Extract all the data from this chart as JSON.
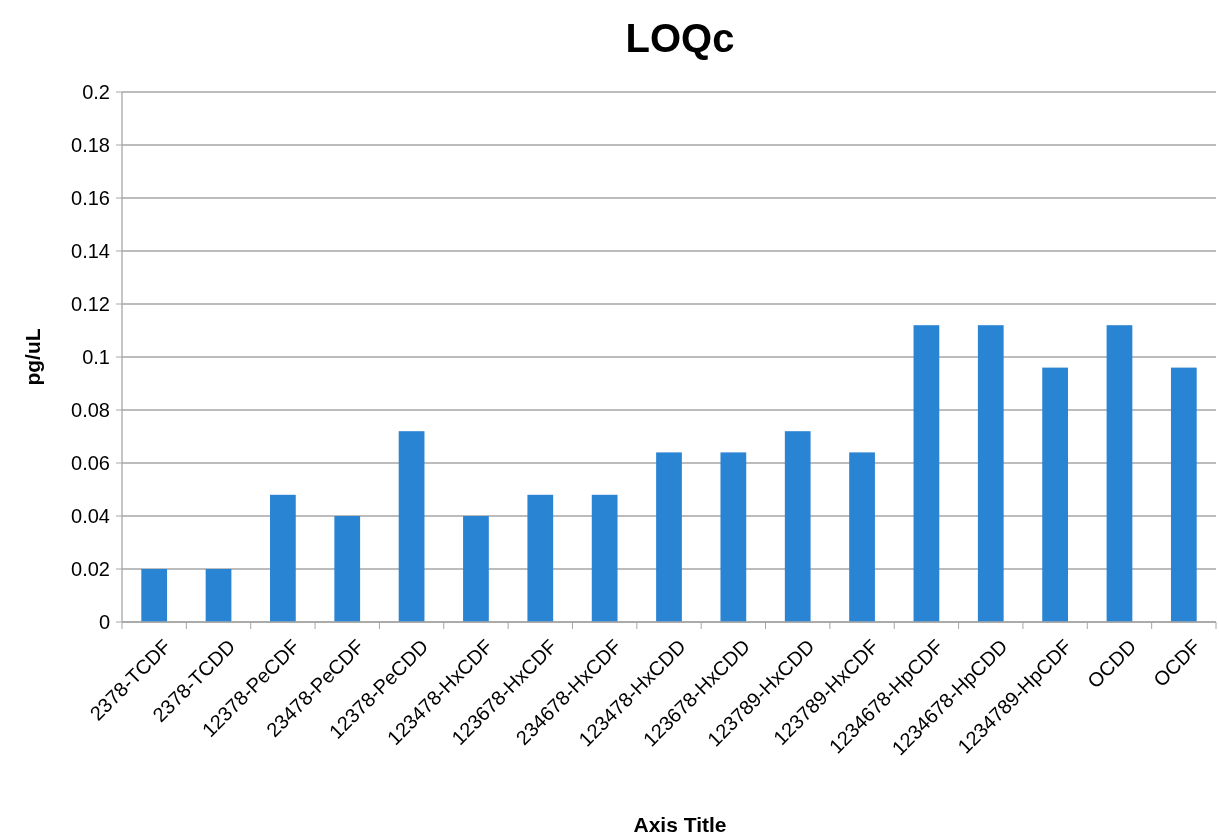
{
  "chart_data": {
    "type": "bar",
    "title": "LOQc",
    "xlabel": "Axis Title",
    "ylabel": "pg/uL",
    "categories": [
      "2378-TCDF",
      "2378-TCDD",
      "12378-PeCDF",
      "23478-PeCDF",
      "12378-PeCDD",
      "123478-HxCDF",
      "123678-HxCDF",
      "234678-HxCDF",
      "123478-HxCDD",
      "123678-HxCDD",
      "123789-HxCDD",
      "123789-HxCDF",
      "1234678-HpCDF",
      "1234678-HpCDD",
      "1234789-HpCDF",
      "OCDD",
      "OCDF"
    ],
    "values": [
      0.02,
      0.02,
      0.048,
      0.04,
      0.072,
      0.04,
      0.048,
      0.048,
      0.064,
      0.064,
      0.072,
      0.064,
      0.112,
      0.112,
      0.096,
      0.112,
      0.096
    ],
    "color": "#2a84d4",
    "ylim": [
      0,
      0.2
    ],
    "yticks": [
      0,
      0.02,
      0.04,
      0.06,
      0.08,
      0.1,
      0.12,
      0.14,
      0.16,
      0.18,
      0.2
    ],
    "grid": "y"
  }
}
